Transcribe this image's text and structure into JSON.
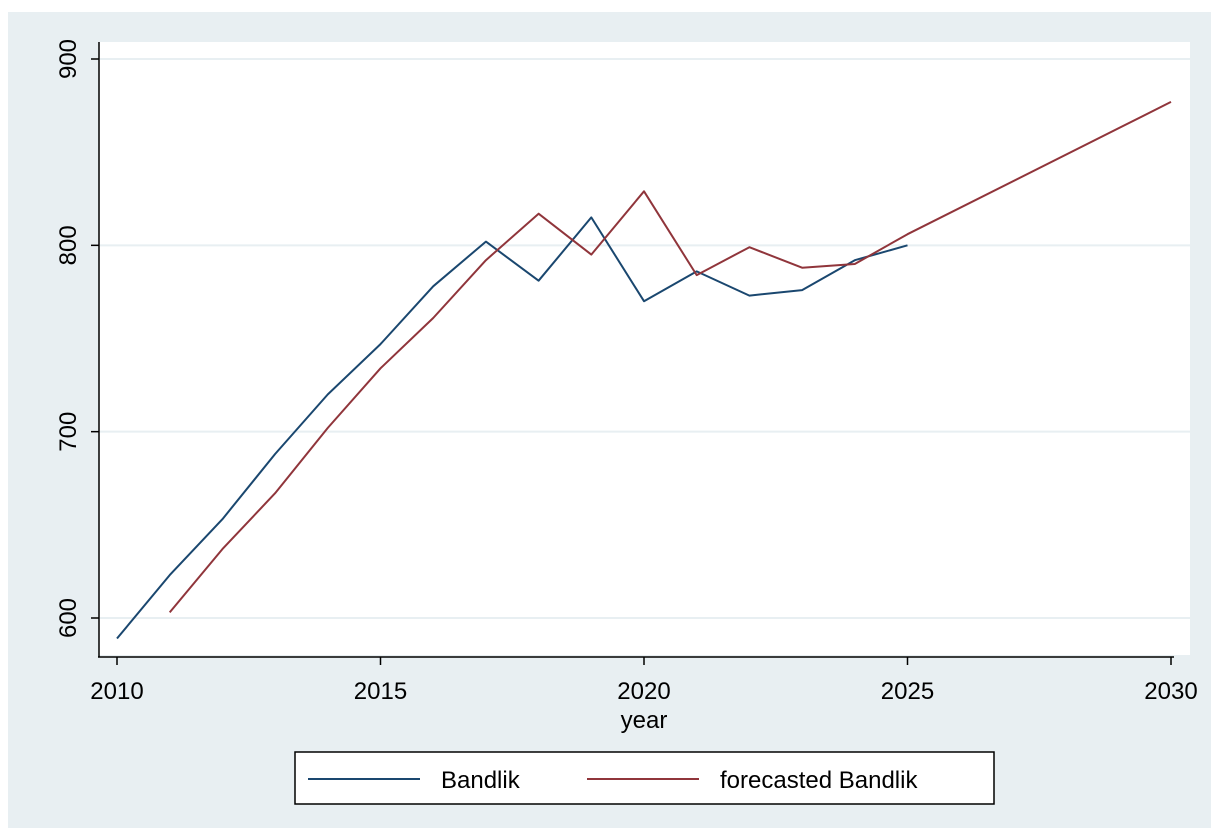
{
  "chart_data": {
    "type": "line",
    "title": "",
    "xlabel": "year",
    "ylabel": "",
    "xlim": [
      2010,
      2030
    ],
    "ylim": [
      590,
      910
    ],
    "xticks": [
      2010,
      2015,
      2020,
      2025,
      2030
    ],
    "yticks": [
      600,
      700,
      800,
      900
    ],
    "grid": "horizontal",
    "legend_position": "bottom",
    "series": [
      {
        "name": "Bandlik",
        "color": "#1a476f",
        "x": [
          2010,
          2011,
          2012,
          2013,
          2014,
          2015,
          2016,
          2017,
          2018,
          2019,
          2020,
          2021,
          2022,
          2023,
          2024,
          2025
        ],
        "y": [
          589,
          623,
          653,
          688,
          720,
          747,
          778,
          802,
          781,
          815,
          770,
          786,
          773,
          776,
          792,
          800
        ]
      },
      {
        "name": "forecasted Bandlik",
        "color": "#90353b",
        "x": [
          2011,
          2012,
          2013,
          2014,
          2015,
          2016,
          2017,
          2018,
          2019,
          2020,
          2021,
          2022,
          2023,
          2024,
          2025,
          2030
        ],
        "y": [
          603,
          637,
          667,
          702,
          734,
          761,
          792,
          817,
          795,
          829,
          784,
          799,
          788,
          790,
          806,
          877
        ]
      }
    ]
  }
}
